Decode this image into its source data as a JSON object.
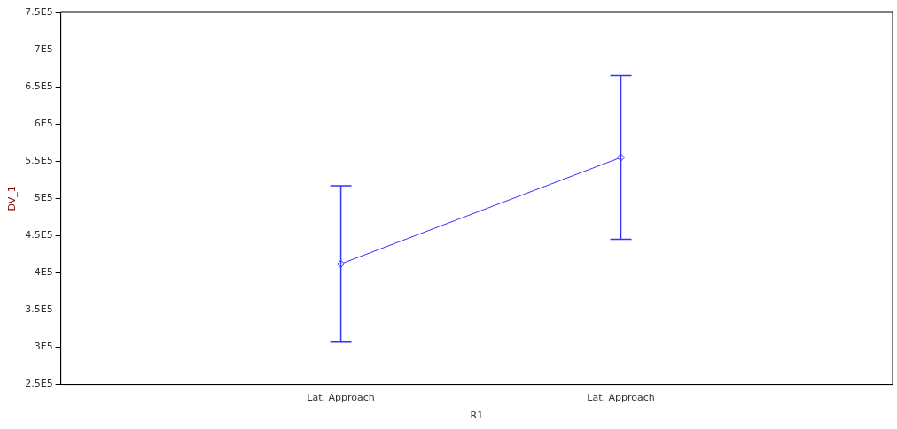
{
  "chart_data": {
    "type": "line",
    "xlabel": "R1",
    "ylabel": "DV_1",
    "categories": [
      "Lat. Approach",
      "Lat. Approach"
    ],
    "series": [
      {
        "color": "#3333ff",
        "values": [
          412000,
          555000
        ],
        "errors": [
          105000,
          110000
        ]
      }
    ],
    "ylim": [
      250000,
      750000
    ],
    "yticks": [
      {
        "value": 250000,
        "label": "2.5E5"
      },
      {
        "value": 300000,
        "label": "3E5"
      },
      {
        "value": 350000,
        "label": "3.5E5"
      },
      {
        "value": 400000,
        "label": "4E5"
      },
      {
        "value": 450000,
        "label": "4.5E5"
      },
      {
        "value": 500000,
        "label": "5E5"
      },
      {
        "value": 550000,
        "label": "5.5E5"
      },
      {
        "value": 600000,
        "label": "6E5"
      },
      {
        "value": 650000,
        "label": "6.5E5"
      },
      {
        "value": 700000,
        "label": "7E5"
      },
      {
        "value": 750000,
        "label": "7.5E5"
      }
    ],
    "grid": false,
    "legend": false,
    "marker": "diamond",
    "line_style": "solid"
  }
}
